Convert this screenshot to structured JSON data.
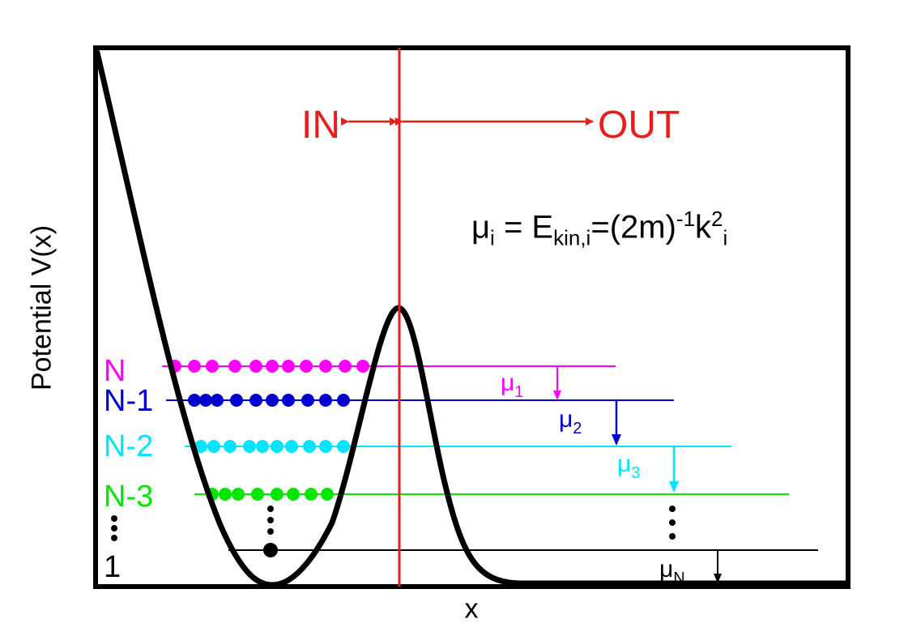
{
  "diagram": {
    "y_axis_label": "Potential V(x)",
    "x_axis_label": "x",
    "in_label": "IN",
    "out_label": "OUT",
    "formula": {
      "lhs": "μ",
      "lhs_sub": "i",
      "eq1": " = E",
      "ekin_sub": "kin,i",
      "eq2": "=(2m)",
      "exp": "-1",
      "k": "k",
      "k_sup": "2",
      "k_sub": "i"
    },
    "levels": [
      {
        "label": "N",
        "color": "#ff00ff",
        "mu": "μ",
        "mu_sub": "1"
      },
      {
        "label": "N-1",
        "color": "#0000cc",
        "mu": "μ",
        "mu_sub": "2"
      },
      {
        "label": "N-2",
        "color": "#00e5ff",
        "mu": "μ",
        "mu_sub": "3"
      },
      {
        "label": "N-3",
        "color": "#00e600",
        "mu": "",
        "mu_sub": ""
      },
      {
        "label": "1",
        "color": "#000000",
        "mu": "μ",
        "mu_sub": "N"
      }
    ],
    "divider_color": "#e61e1e"
  }
}
